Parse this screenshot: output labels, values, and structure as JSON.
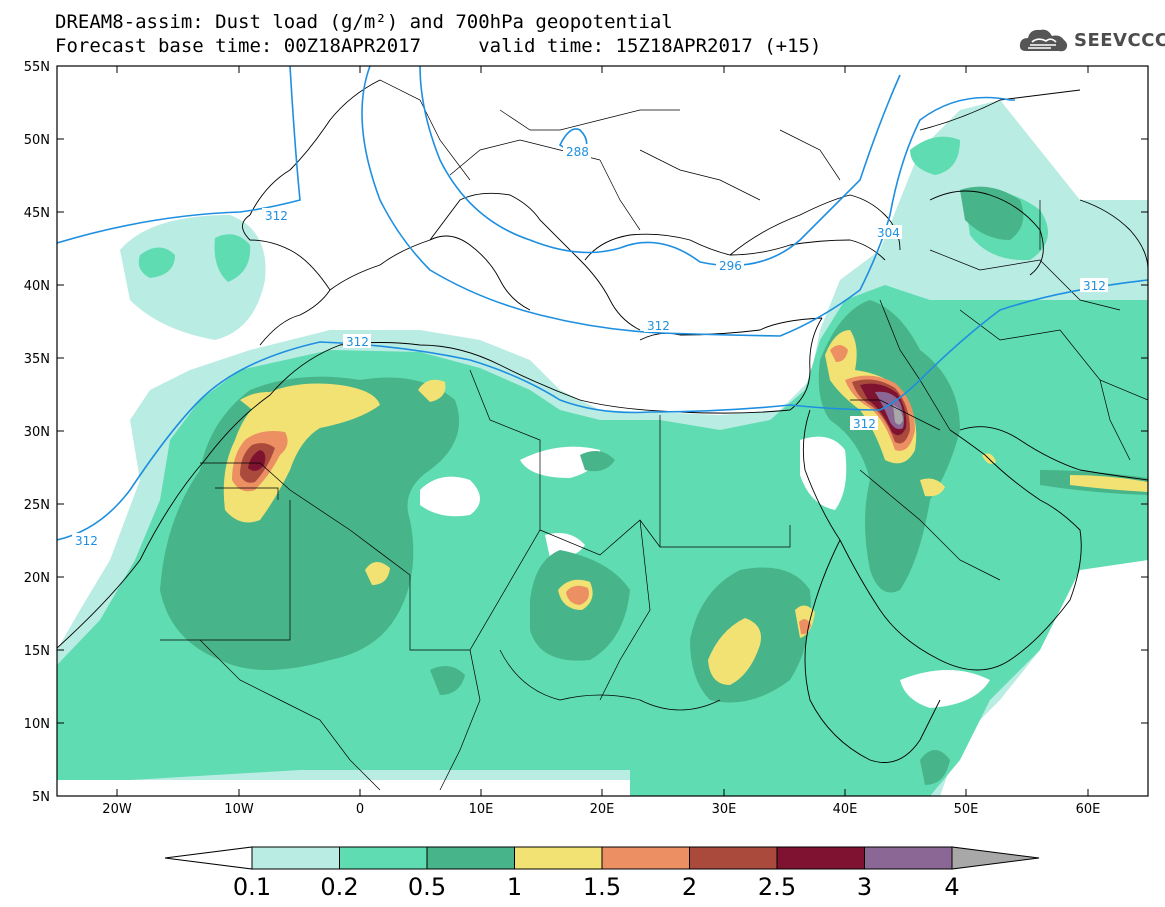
{
  "title": {
    "line1": "DREAM8-assim: Dust load (g/m²) and 700hPa geopotential",
    "line2": "Forecast base time: 00Z18APR2017     valid time: 15Z18APR2017 (+15)"
  },
  "logo": {
    "text": "SEEVCCC",
    "icon": "cloud-icon"
  },
  "axes": {
    "lon_labels": [
      "20W",
      "10W",
      "0",
      "10E",
      "20E",
      "30E",
      "40E",
      "50E",
      "60E"
    ],
    "lat_labels": [
      "55N",
      "50N",
      "45N",
      "40N",
      "35N",
      "30N",
      "25N",
      "20N",
      "15N",
      "10N",
      "5N"
    ]
  },
  "contour_labels": [
    "312",
    "312",
    "312",
    "312",
    "312",
    "312",
    "304",
    "296",
    "288"
  ],
  "colorbar": {
    "labels": [
      "0.1",
      "0.2",
      "0.5",
      "1",
      "1.5",
      "2",
      "2.5",
      "3",
      "4"
    ],
    "colors": [
      "#b9ece2",
      "#5fdcb1",
      "#48b48a",
      "#f2e273",
      "#ec8f62",
      "#a94a3c",
      "#7e1230",
      "#8a6795",
      "#a8a8a8"
    ]
  }
}
